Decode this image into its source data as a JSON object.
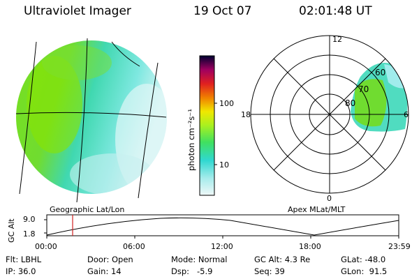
{
  "header": {
    "title": "Ultraviolet Imager",
    "date": "19 Oct 07",
    "time": "02:01:48 UT"
  },
  "colorbar": {
    "unit_label": "photon cm⁻²s⁻¹",
    "ticks": [
      "100",
      "10"
    ]
  },
  "polar": {
    "clock_labels": [
      "12",
      "18",
      "6",
      "0"
    ],
    "lat_labels": [
      "60",
      "70",
      "80"
    ]
  },
  "map_labels": {
    "left": "Geographic Lat/Lon",
    "right": "Apex MLat/MLT"
  },
  "altitude_plot": {
    "axis_label": "GC Alt",
    "y_ticks": [
      "9.0",
      "1.8"
    ],
    "x_ticks": [
      "00:00",
      "06:00",
      "12:00",
      "18:00",
      "23:59"
    ]
  },
  "footer": {
    "row1": [
      {
        "label": "Flt:",
        "value": "LBHL"
      },
      {
        "label": "Door:",
        "value": "Open"
      },
      {
        "label": "Mode:",
        "value": "Normal"
      },
      {
        "label": "GC Alt:",
        "value": "4.3 Re"
      },
      {
        "label": "GLat:",
        "value": "-48.0"
      }
    ],
    "row2": [
      {
        "label": "IP:",
        "value": "36.0"
      },
      {
        "label": "Gain:",
        "value": "14"
      },
      {
        "label": "Dsp:",
        "value": "-5.9"
      },
      {
        "label": "Seq:",
        "value": "39"
      },
      {
        "label": "GLon:",
        "value": "91.5"
      }
    ]
  },
  "colors": {
    "aurora_green": "#7fe000",
    "aurora_cyan": "#40e0d0",
    "pale_cyan": "#d8f4f4",
    "marker_red": "#d02020"
  }
}
